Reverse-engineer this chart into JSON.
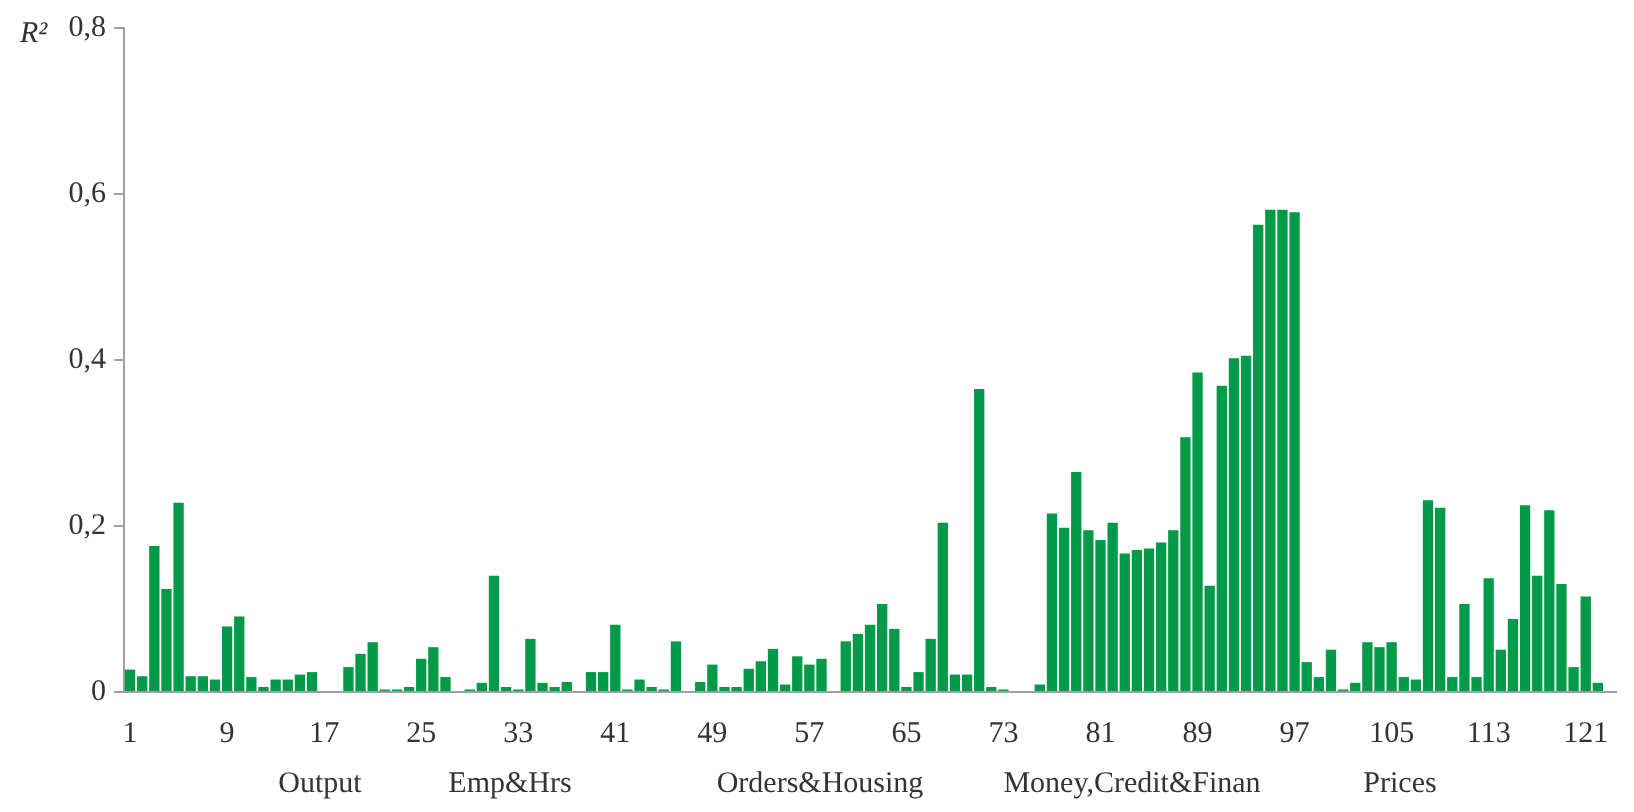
{
  "chart_data": {
    "type": "bar",
    "ylabel": "R²",
    "categories": [
      "1",
      null,
      null,
      null,
      null,
      null,
      null,
      null,
      "9",
      null,
      null,
      null,
      null,
      null,
      null,
      null,
      "17",
      null,
      null,
      null,
      null,
      null,
      null,
      null,
      "25",
      null,
      null,
      null,
      null,
      null,
      null,
      null,
      "33",
      null,
      null,
      null,
      null,
      null,
      null,
      null,
      "41",
      null,
      null,
      null,
      null,
      null,
      null,
      null,
      "49",
      null,
      null,
      null,
      null,
      null,
      null,
      null,
      "57",
      null,
      null,
      null,
      null,
      null,
      null,
      null,
      "65",
      null,
      null,
      null,
      null,
      null,
      null,
      null,
      "73",
      null,
      null,
      null,
      null,
      null,
      null,
      null,
      "81",
      null,
      null,
      null,
      null,
      null,
      null,
      null,
      "89",
      null,
      null,
      null,
      null,
      null,
      null,
      null,
      "97",
      null,
      null,
      null,
      null,
      null,
      null,
      null,
      "105",
      null,
      null,
      null,
      null,
      null,
      null,
      null,
      "113",
      null,
      null,
      null,
      null,
      null,
      null,
      null,
      "121",
      null,
      null
    ],
    "values": [
      0.027,
      0.019,
      0.176,
      0.124,
      0.228,
      0.019,
      0.019,
      0.015,
      0.079,
      0.091,
      0.018,
      0.006,
      0.015,
      0.015,
      0.021,
      0.024,
      0,
      0,
      0.03,
      0.046,
      0.06,
      0.003,
      0.003,
      0.006,
      0.04,
      0.054,
      0.018,
      0,
      0.003,
      0.011,
      0.14,
      0.006,
      0.003,
      0.064,
      0.011,
      0.006,
      0.012,
      0,
      0.024,
      0.024,
      0.081,
      0.003,
      0.015,
      0.006,
      0.003,
      0.061,
      0,
      0.012,
      0.033,
      0.006,
      0.006,
      0.028,
      0.037,
      0.052,
      0.009,
      0.043,
      0.033,
      0.04,
      0,
      0.061,
      0.07,
      0.081,
      0.106,
      0.076,
      0.006,
      0.024,
      0.064,
      0.204,
      0.021,
      0.021,
      0.365,
      0.006,
      0.003,
      0,
      0,
      0.009,
      0.215,
      0.198,
      0.265,
      0.195,
      0.183,
      0.204,
      0.167,
      0.171,
      0.173,
      0.18,
      0.195,
      0.307,
      0.385,
      0.128,
      0.369,
      0.402,
      0.405,
      0.563,
      0.581,
      0.581,
      0.578,
      0.036,
      0.018,
      0.051,
      0.003,
      0.011,
      0.06,
      0.054,
      0.06,
      0.018,
      0.015,
      0.231,
      0.222,
      0.018,
      0.106,
      0.018,
      0.137,
      0.051,
      0.088,
      0.225,
      0.14,
      0.219,
      0.13,
      0.03,
      0.115,
      0.011,
      0
    ],
    "color": "#009a48",
    "ylim": [
      0,
      0.8
    ],
    "yticks": [
      0,
      {
        "value": 0.2,
        "label": "0,2"
      },
      {
        "value": 0.4,
        "label": "0,4"
      },
      {
        "value": 0.6,
        "label": "0,6"
      },
      {
        "value": 0.8,
        "label": "0,8"
      }
    ],
    "grid": false,
    "legend": false,
    "annotations": [
      "Output",
      "Emp&Hrs",
      "Orders&Housing",
      "Money,Credit&Finan",
      "Prices"
    ]
  }
}
